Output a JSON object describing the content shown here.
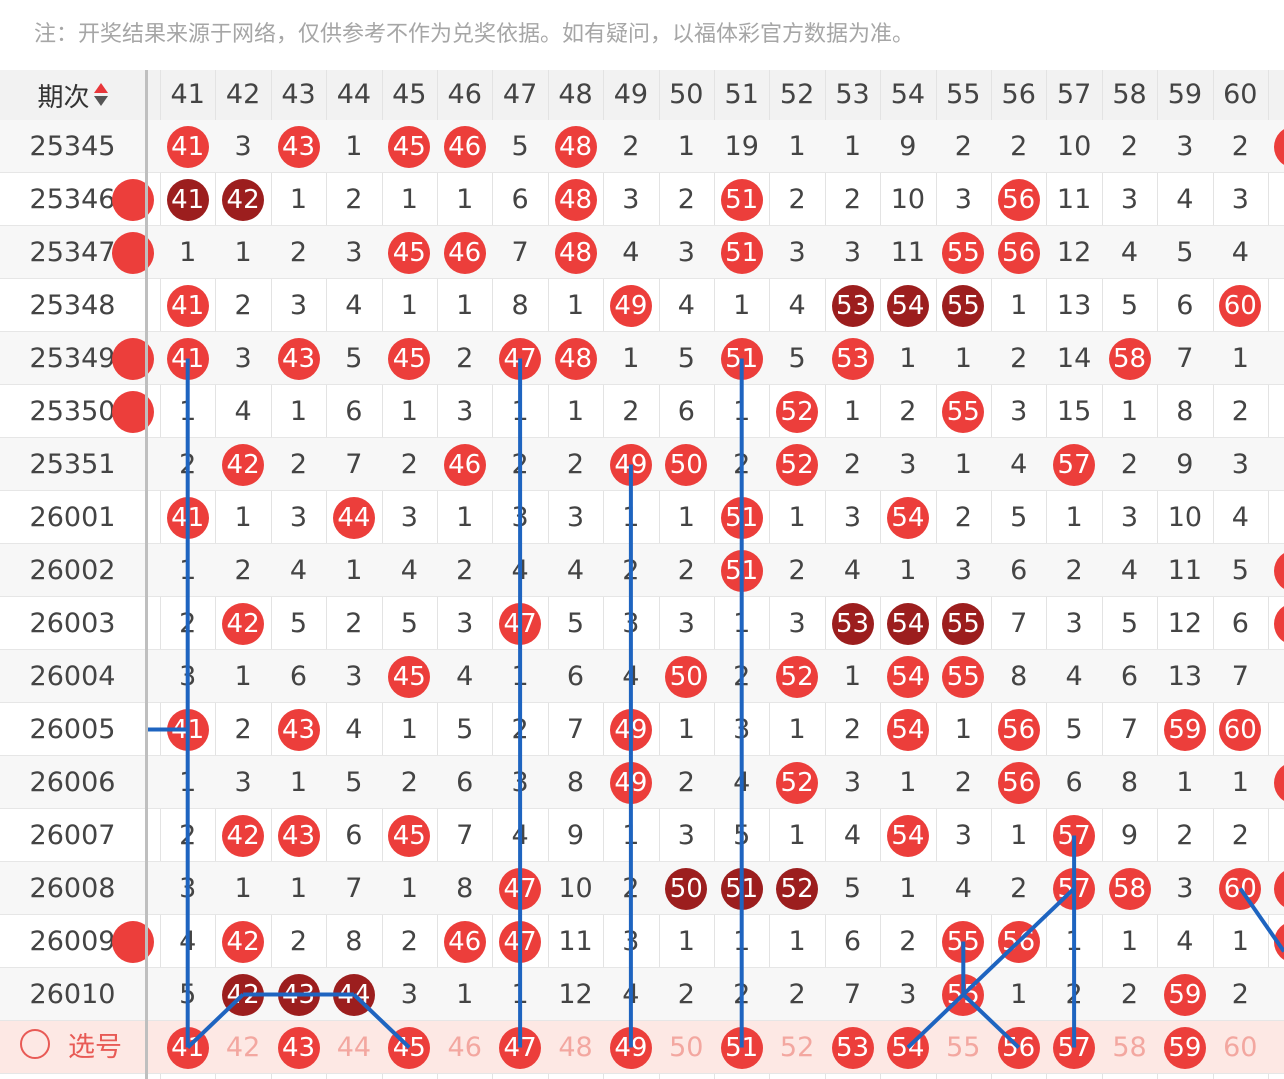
{
  "notice": "注：开奖结果来源于网络，仅供参考不作为兑奖依据。如有疑问，以福体彩官方数据为准。",
  "header": {
    "period_label": "期次",
    "columns": [
      "41",
      "42",
      "43",
      "44",
      "45",
      "46",
      "47",
      "48",
      "49",
      "50",
      "51",
      "52",
      "53",
      "54",
      "55",
      "56",
      "57",
      "58",
      "59",
      "60"
    ]
  },
  "rows": [
    {
      "period": "25345",
      "cells": [
        "41",
        "3",
        "43",
        "1",
        "45",
        "46",
        "5",
        "48",
        "2",
        "1",
        "19",
        "1",
        "1",
        "9",
        "2",
        "2",
        "10",
        "2",
        "3",
        "2"
      ],
      "hits": [
        0,
        2,
        4,
        5,
        7
      ],
      "dark": [],
      "left_edge": false,
      "right_edge": true
    },
    {
      "period": "25346",
      "cells": [
        "41",
        "42",
        "1",
        "2",
        "1",
        "1",
        "6",
        "48",
        "3",
        "2",
        "51",
        "2",
        "2",
        "10",
        "3",
        "56",
        "11",
        "3",
        "4",
        "3"
      ],
      "hits": [
        7,
        10,
        15
      ],
      "dark": [
        0,
        1
      ],
      "left_edge": true,
      "right_edge": false
    },
    {
      "period": "25347",
      "cells": [
        "1",
        "1",
        "2",
        "3",
        "45",
        "46",
        "7",
        "48",
        "4",
        "3",
        "51",
        "3",
        "3",
        "11",
        "55",
        "56",
        "12",
        "4",
        "5",
        "4"
      ],
      "hits": [
        4,
        5,
        7,
        10,
        14,
        15
      ],
      "dark": [],
      "left_edge": true,
      "right_edge": false
    },
    {
      "period": "25348",
      "cells": [
        "41",
        "2",
        "3",
        "4",
        "1",
        "1",
        "8",
        "1",
        "49",
        "4",
        "1",
        "4",
        "53",
        "54",
        "55",
        "1",
        "13",
        "5",
        "6",
        "60"
      ],
      "hits": [
        0,
        8,
        19
      ],
      "dark": [
        12,
        13,
        14
      ],
      "left_edge": false,
      "right_edge": false
    },
    {
      "period": "25349",
      "cells": [
        "41",
        "3",
        "43",
        "5",
        "45",
        "2",
        "47",
        "48",
        "1",
        "5",
        "51",
        "5",
        "53",
        "1",
        "1",
        "2",
        "14",
        "58",
        "7",
        "1"
      ],
      "hits": [
        0,
        2,
        4,
        6,
        7,
        10,
        12,
        17
      ],
      "dark": [],
      "left_edge": true,
      "right_edge": false
    },
    {
      "period": "25350",
      "cells": [
        "1",
        "4",
        "1",
        "6",
        "1",
        "3",
        "1",
        "1",
        "2",
        "6",
        "1",
        "52",
        "1",
        "2",
        "55",
        "3",
        "15",
        "1",
        "8",
        "2"
      ],
      "hits": [
        11,
        14
      ],
      "dark": [],
      "left_edge": true,
      "right_edge": false
    },
    {
      "period": "25351",
      "cells": [
        "2",
        "42",
        "2",
        "7",
        "2",
        "46",
        "2",
        "2",
        "49",
        "50",
        "2",
        "52",
        "2",
        "3",
        "1",
        "4",
        "57",
        "2",
        "9",
        "3"
      ],
      "hits": [
        1,
        5,
        8,
        9,
        11,
        16
      ],
      "dark": [],
      "left_edge": false,
      "right_edge": false
    },
    {
      "period": "26001",
      "cells": [
        "41",
        "1",
        "3",
        "44",
        "3",
        "1",
        "3",
        "3",
        "1",
        "1",
        "51",
        "1",
        "3",
        "54",
        "2",
        "5",
        "1",
        "3",
        "10",
        "4"
      ],
      "hits": [
        0,
        3,
        10,
        13
      ],
      "dark": [],
      "left_edge": false,
      "right_edge": false
    },
    {
      "period": "26002",
      "cells": [
        "1",
        "2",
        "4",
        "1",
        "4",
        "2",
        "4",
        "4",
        "2",
        "2",
        "51",
        "2",
        "4",
        "1",
        "3",
        "6",
        "2",
        "4",
        "11",
        "5"
      ],
      "hits": [
        10
      ],
      "dark": [],
      "left_edge": false,
      "right_edge": true
    },
    {
      "period": "26003",
      "cells": [
        "2",
        "42",
        "5",
        "2",
        "5",
        "3",
        "47",
        "5",
        "3",
        "3",
        "1",
        "3",
        "53",
        "54",
        "55",
        "7",
        "3",
        "5",
        "12",
        "6"
      ],
      "hits": [
        1,
        6
      ],
      "dark": [
        12,
        13,
        14
      ],
      "left_edge": false,
      "right_edge": true
    },
    {
      "period": "26004",
      "cells": [
        "3",
        "1",
        "6",
        "3",
        "45",
        "4",
        "1",
        "6",
        "4",
        "50",
        "2",
        "52",
        "1",
        "54",
        "55",
        "8",
        "4",
        "6",
        "13",
        "7"
      ],
      "hits": [
        4,
        9,
        11,
        13,
        14
      ],
      "dark": [],
      "left_edge": false,
      "right_edge": false
    },
    {
      "period": "26005",
      "cells": [
        "41",
        "2",
        "43",
        "4",
        "1",
        "5",
        "2",
        "7",
        "49",
        "1",
        "3",
        "1",
        "2",
        "54",
        "1",
        "56",
        "5",
        "7",
        "59",
        "60"
      ],
      "hits": [
        0,
        2,
        8,
        13,
        15,
        18,
        19
      ],
      "dark": [],
      "left_edge": false,
      "right_edge": false
    },
    {
      "period": "26006",
      "cells": [
        "1",
        "3",
        "1",
        "5",
        "2",
        "6",
        "3",
        "8",
        "49",
        "2",
        "4",
        "52",
        "3",
        "1",
        "2",
        "56",
        "6",
        "8",
        "1",
        "1"
      ],
      "hits": [
        8,
        11,
        15
      ],
      "dark": [],
      "left_edge": false,
      "right_edge": true
    },
    {
      "period": "26007",
      "cells": [
        "2",
        "42",
        "43",
        "6",
        "45",
        "7",
        "4",
        "9",
        "1",
        "3",
        "5",
        "1",
        "4",
        "54",
        "3",
        "1",
        "57",
        "9",
        "2",
        "2"
      ],
      "hits": [
        1,
        2,
        4,
        13,
        16
      ],
      "dark": [],
      "left_edge": false,
      "right_edge": false
    },
    {
      "period": "26008",
      "cells": [
        "3",
        "1",
        "1",
        "7",
        "1",
        "8",
        "47",
        "10",
        "2",
        "50",
        "51",
        "52",
        "5",
        "1",
        "4",
        "2",
        "57",
        "58",
        "3",
        "60"
      ],
      "hits": [
        6,
        16,
        17,
        19
      ],
      "dark": [
        9,
        10,
        11
      ],
      "left_edge": false,
      "right_edge": true
    },
    {
      "period": "26009",
      "cells": [
        "4",
        "42",
        "2",
        "8",
        "2",
        "46",
        "47",
        "11",
        "3",
        "1",
        "1",
        "1",
        "6",
        "2",
        "55",
        "56",
        "1",
        "1",
        "4",
        "1"
      ],
      "hits": [
        1,
        5,
        6,
        14,
        15
      ],
      "dark": [],
      "left_edge": true,
      "right_edge": true
    },
    {
      "period": "26010",
      "cells": [
        "5",
        "42",
        "43",
        "44",
        "3",
        "1",
        "1",
        "12",
        "4",
        "2",
        "2",
        "2",
        "7",
        "3",
        "55",
        "1",
        "2",
        "2",
        "59",
        "2"
      ],
      "hits": [
        14,
        18
      ],
      "dark": [
        1,
        2,
        3
      ],
      "left_edge": false,
      "right_edge": false
    }
  ],
  "select_row": {
    "label": "选号",
    "cells": [
      "41",
      "42",
      "43",
      "44",
      "45",
      "46",
      "47",
      "48",
      "49",
      "50",
      "51",
      "52",
      "53",
      "54",
      "55",
      "56",
      "57",
      "58",
      "59",
      "60"
    ],
    "hits": [
      0,
      2,
      4,
      6,
      8,
      10,
      12,
      13,
      15,
      16,
      18
    ]
  },
  "colors": {
    "hit": "#ec3e3b",
    "dark": "#9c1e1e",
    "line": "#1e64c0"
  }
}
